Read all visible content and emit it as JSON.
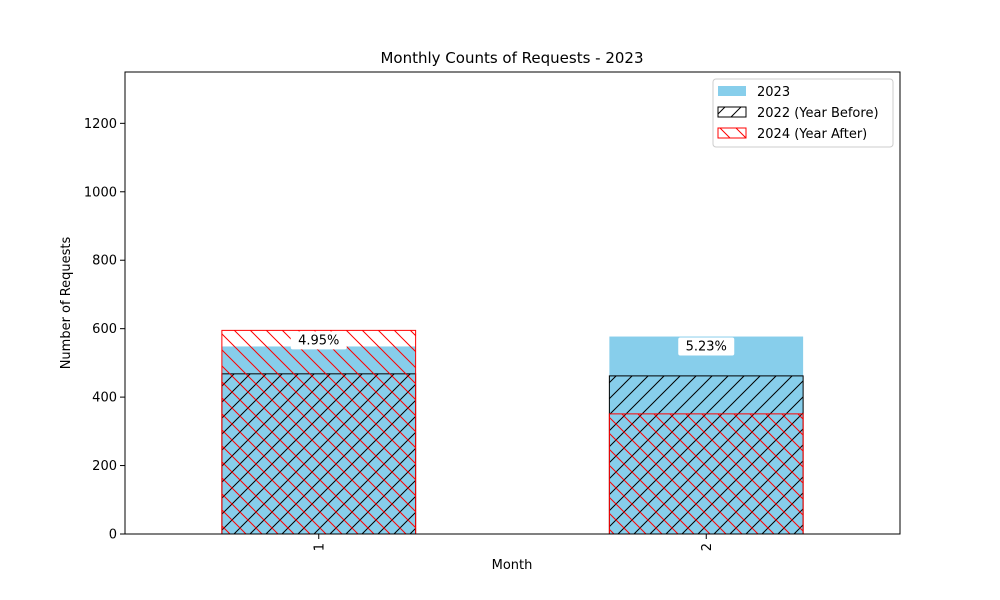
{
  "chart_data": {
    "type": "bar",
    "title": "Monthly Counts of Requests - 2023",
    "xlabel": "Month",
    "ylabel": "Number of Requests",
    "categories": [
      "1",
      "2"
    ],
    "ylim": [
      0,
      1350
    ],
    "yticks": [
      0,
      200,
      400,
      600,
      800,
      1000,
      1200
    ],
    "grid": false,
    "legend_position": "top-right",
    "series": [
      {
        "name": "2023",
        "values": [
          548,
          577
        ],
        "color": "#87CEEB",
        "hatch": "none"
      },
      {
        "name": "2022 (Year Before)",
        "values": [
          468,
          462
        ],
        "color": "#000000",
        "hatch": "forward-diagonal"
      },
      {
        "name": "2024 (Year After)",
        "values": [
          595,
          351
        ],
        "color": "#FF0000",
        "hatch": "back-diagonal"
      }
    ],
    "annotations": [
      "4.95%",
      "5.23%"
    ]
  }
}
